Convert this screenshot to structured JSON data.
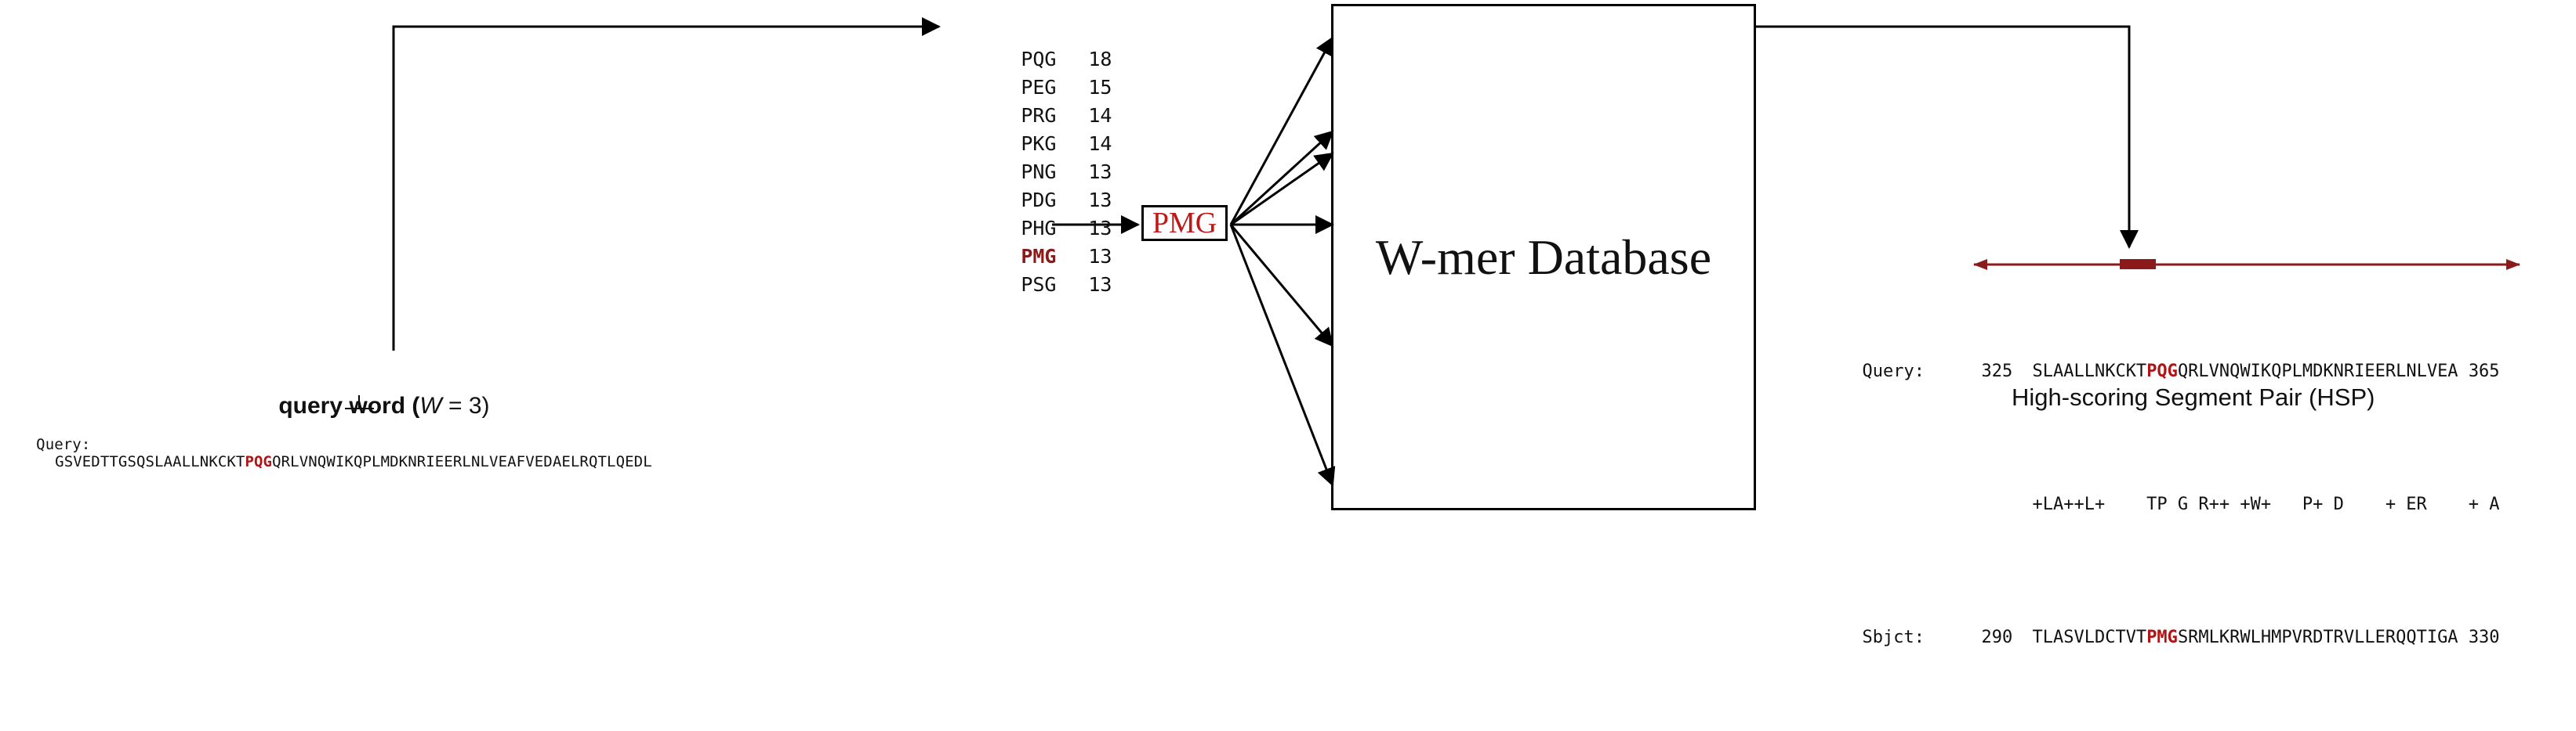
{
  "query_word_label": {
    "prefix": "query word (",
    "var": "W",
    "suffix": " = 3)"
  },
  "query_line": {
    "label": "Query:",
    "seq_before": "GSVEDTTGSQSLAALLNKCKT",
    "seq_highlight": "PQG",
    "seq_after": "QRLVNQWIKQPLMDKNRIEERLNLVEAFVEDAELRQTLQEDL"
  },
  "neighborhood_words": [
    {
      "word": "PQG",
      "score": "18"
    },
    {
      "word": "PEG",
      "score": "15"
    },
    {
      "word": "PRG",
      "score": "14"
    },
    {
      "word": "PKG",
      "score": "14"
    },
    {
      "word": "PNG",
      "score": "13"
    },
    {
      "word": "PDG",
      "score": "13"
    },
    {
      "word": "PHG",
      "score": "13"
    },
    {
      "word": "PMG",
      "score": "13",
      "highlight": true
    },
    {
      "word": "PSG",
      "score": "13"
    }
  ],
  "selected_word": "PMG",
  "database_label": "W-mer Database",
  "hsp": {
    "query_label": "Query:",
    "query_start": "325",
    "query_before": "SLAALLNKCKT",
    "query_highlight": "PQG",
    "query_after": "QRLVNQWIKQPLMDKNRIEERLNLVEA",
    "query_end": "365",
    "match_line": "+LA++L+    TP G R++ +W+   P+ D    + ER    + A",
    "sbjct_label": "Sbjct:",
    "sbjct_start": "290",
    "sbjct_before": "TLASVLDCTVT",
    "sbjct_highlight": "PMG",
    "sbjct_after": "SRMLKRWLHMPVRDTRVLLERQQTIGA",
    "sbjct_end": "330",
    "caption": "High-scoring Segment Pair (HSP)"
  },
  "colors": {
    "highlight_red": "#b01515",
    "hsp_arrow": "#8b1a1a",
    "line": "#000000"
  }
}
